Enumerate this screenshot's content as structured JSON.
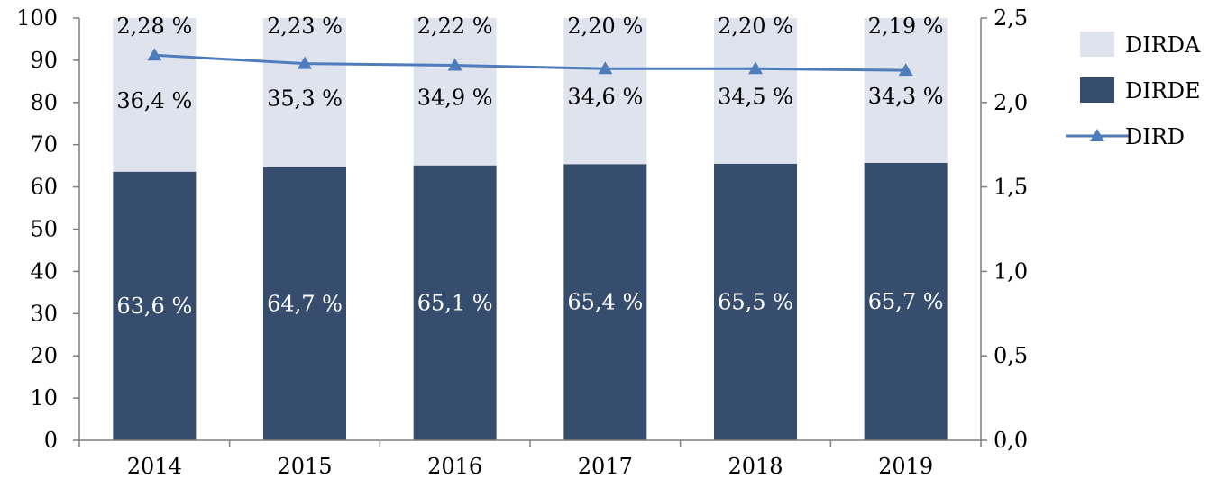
{
  "chart_data": {
    "type": "bar",
    "stacked": true,
    "categories": [
      "2014",
      "2015",
      "2016",
      "2017",
      "2018",
      "2019"
    ],
    "ylim": [
      0,
      100
    ],
    "y_ticks": [
      "0",
      "10",
      "20",
      "30",
      "40",
      "50",
      "60",
      "70",
      "80",
      "90",
      "100"
    ],
    "y2lim": [
      0,
      2.5
    ],
    "y2_ticks": [
      "0,0",
      "0,5",
      "1,0",
      "1,5",
      "2,0",
      "2,5"
    ],
    "grid": false,
    "legend_position": "top-right",
    "series": [
      {
        "name": "DIRDE",
        "kind": "bar",
        "axis": "left",
        "color": "#374d6e",
        "label_color": "#ffffff",
        "values": [
          63.6,
          64.7,
          65.1,
          65.4,
          65.5,
          65.7
        ],
        "labels": [
          "63,6 %",
          "64,7 %",
          "65,1 %",
          "65,4 %",
          "65,5 %",
          "65,7 %"
        ]
      },
      {
        "name": "DIRDA",
        "kind": "bar",
        "axis": "left",
        "color": "#dee3ee",
        "label_color": "#000000",
        "values": [
          36.4,
          35.3,
          34.9,
          34.6,
          34.5,
          34.3
        ],
        "labels": [
          "36,4 %",
          "35,3 %",
          "34,9 %",
          "34,6 %",
          "34,5 %",
          "34,3 %"
        ]
      },
      {
        "name": "DIRD",
        "kind": "line",
        "axis": "right",
        "color": "#4f7dbb",
        "marker": "triangle",
        "label_color": "#000000",
        "values": [
          2.28,
          2.23,
          2.22,
          2.2,
          2.2,
          2.19
        ],
        "labels": [
          "2,28 %",
          "2,23 %",
          "2,22 %",
          "2,20 %",
          "2,20 %",
          "2,19 %"
        ]
      }
    ],
    "legend": [
      "DIRDA",
      "DIRDE",
      "DIRD"
    ]
  }
}
